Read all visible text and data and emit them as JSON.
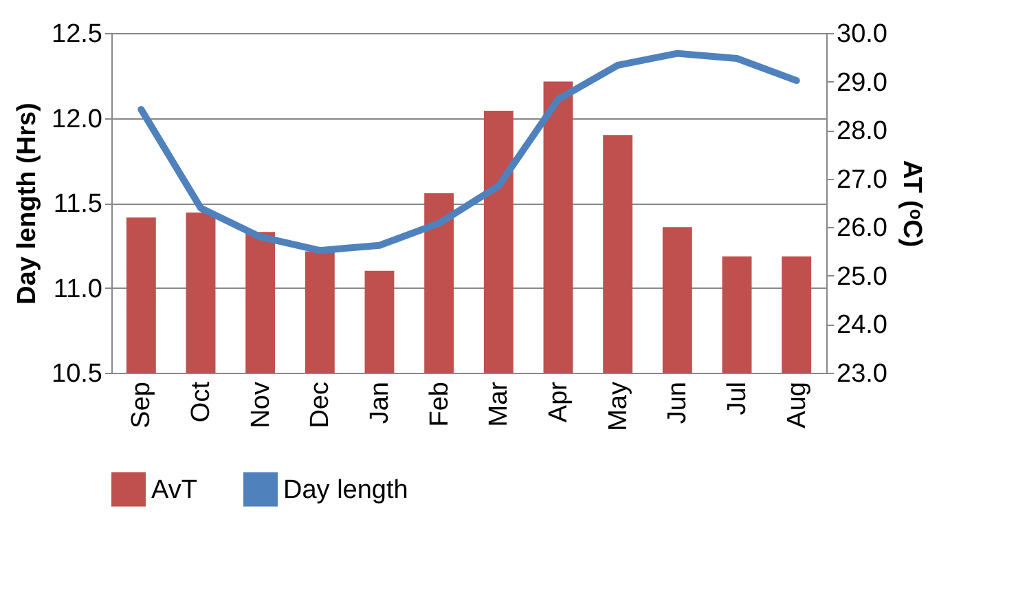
{
  "chart_data": {
    "type": "bar",
    "categories": [
      "Sep",
      "Oct",
      "Nov",
      "Dec",
      "Jan",
      "Feb",
      "Mar",
      "Apr",
      "May",
      "Jun",
      "Jul",
      "Aug"
    ],
    "series": [
      {
        "name": "AvT",
        "axis": "y2",
        "color": "#c0504d",
        "values": [
          26.2,
          26.3,
          25.9,
          25.5,
          25.1,
          26.7,
          28.4,
          29.0,
          27.9,
          26.0,
          25.4,
          25.4
        ]
      },
      {
        "name": "Day length",
        "type": "line",
        "color": "#4f81bd",
        "values": [
          12.05,
          11.47,
          11.3,
          11.22,
          11.25,
          11.38,
          11.6,
          12.11,
          12.31,
          12.38,
          12.35,
          12.22
        ]
      }
    ],
    "ylabel": "Day length (Hrs)",
    "y2label": "AT (ᵒC)",
    "ylim": [
      10.5,
      12.5
    ],
    "yticks": [
      {
        "value": 10.5,
        "label": "10.5"
      },
      {
        "value": 11,
        "label": "11.0"
      },
      {
        "value": 11.5,
        "label": "11.5"
      },
      {
        "value": 12,
        "label": "12.0"
      },
      {
        "value": 12.5,
        "label": "12.5"
      }
    ],
    "y2lim": [
      23,
      30
    ],
    "y2ticks": [
      {
        "value": 23,
        "label": "23.0"
      },
      {
        "value": 24,
        "label": "24.0"
      },
      {
        "value": 25,
        "label": "25.0"
      },
      {
        "value": 26,
        "label": "26.0"
      },
      {
        "value": 27,
        "label": "27.0"
      },
      {
        "value": 28,
        "label": "28.0"
      },
      {
        "value": 29,
        "label": "29.0"
      },
      {
        "value": 30,
        "label": "30.0"
      }
    ],
    "grid": "y",
    "legend": "bottom"
  }
}
